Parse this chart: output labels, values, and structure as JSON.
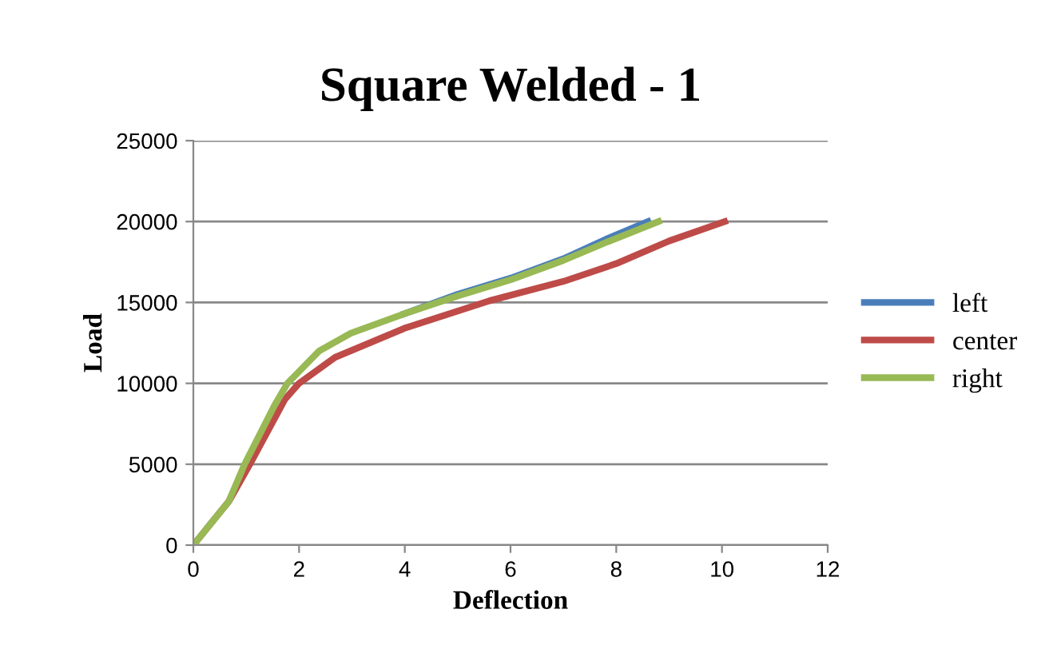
{
  "chart_data": {
    "type": "line",
    "title": "Square Welded - 1",
    "xlabel": "Deflection",
    "ylabel": "Load",
    "xlim": [
      0,
      12
    ],
    "xticks": [
      0,
      2,
      4,
      6,
      8,
      10,
      12
    ],
    "ylim": [
      0,
      25000
    ],
    "yticks": [
      0,
      5000,
      10000,
      15000,
      20000,
      25000
    ],
    "grid": "y",
    "legend": "right",
    "marker": "none",
    "line_style": "solid",
    "series": [
      {
        "name": "left",
        "color": "#4a7ebb",
        "x": [
          3.99,
          5.0,
          6.0,
          7.0,
          7.8,
          8.6
        ],
        "values": [
          14300,
          15500,
          16500,
          17700,
          18900,
          20000
        ]
      },
      {
        "name": "center",
        "color": "#be4b48",
        "x": [
          0,
          0.67,
          1.07,
          1.73,
          2.0,
          2.68,
          3.99,
          5.6,
          7.0,
          8.0,
          9.0,
          10.05
        ],
        "values": [
          0,
          2700,
          5000,
          9000,
          10000,
          11600,
          13400,
          15100,
          16300,
          17400,
          18800,
          20000
        ]
      },
      {
        "name": "right",
        "color": "#98b954",
        "x": [
          0,
          0.67,
          0.97,
          1.53,
          1.78,
          2.38,
          2.98,
          3.99,
          5.0,
          6.0,
          7.0,
          7.8,
          8.8
        ],
        "values": [
          0,
          2700,
          5000,
          8600,
          10000,
          12000,
          13100,
          14300,
          15400,
          16400,
          17600,
          18700,
          20000
        ]
      }
    ]
  }
}
